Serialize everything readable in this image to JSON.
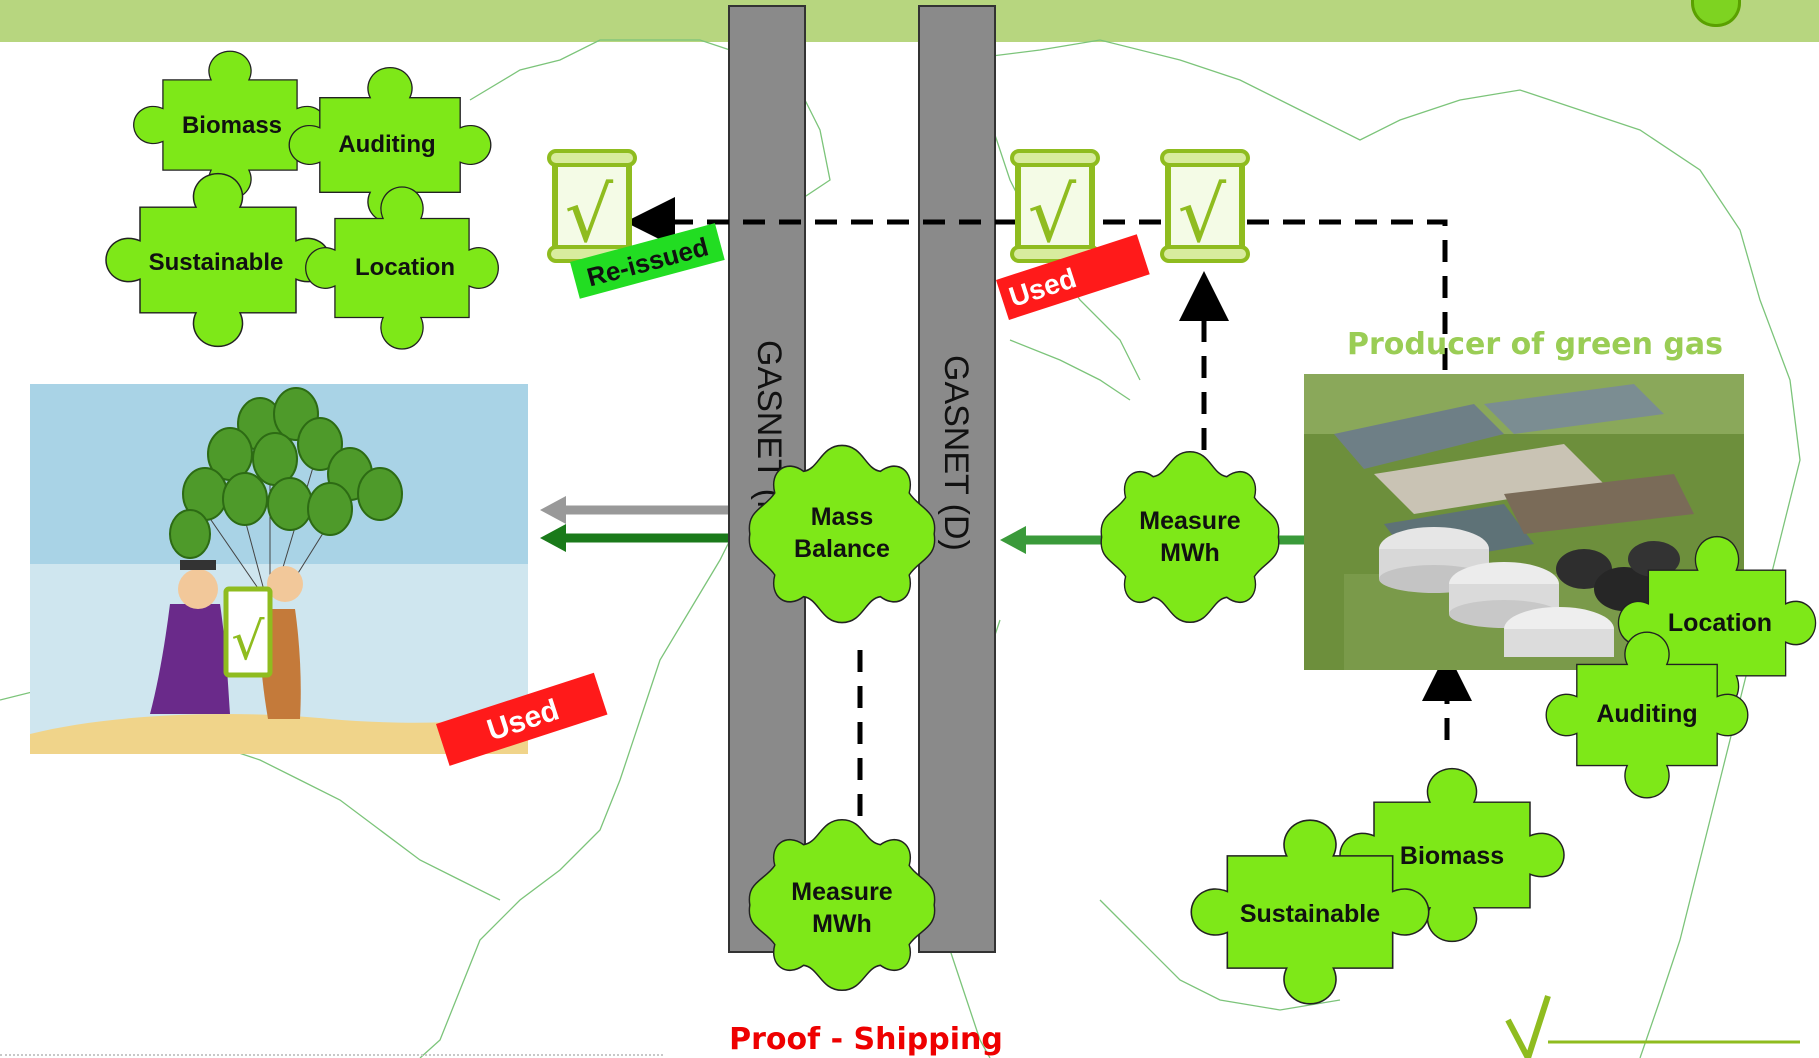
{
  "pipes": {
    "nl_label": "GASNET (NL)",
    "d_label": "GASNET (D)"
  },
  "producer": {
    "title": "Producer of green gas"
  },
  "proof_shipping": "Proof - Shipping",
  "stamps": {
    "reissued": "Re-issued",
    "used_top": "Used",
    "used_bottom": "Used"
  },
  "certificate": {
    "glyph": "√",
    "icon": "certificate-scroll-icon"
  },
  "left_puzzle": {
    "biomass": "Biomass",
    "auditing": "Auditing",
    "sustainable": "Sustainable",
    "location": "Location"
  },
  "right_puzzle": {
    "location": "Location",
    "auditing": "Auditing",
    "biomass": "Biomass",
    "sustainable": "Sustainable"
  },
  "pipe_gears": {
    "mass_balance_line1": "Mass",
    "mass_balance_line2": "Balance",
    "measure_bottom_line1": "Measure",
    "measure_bottom_line2": "MWh"
  },
  "producer_gear": {
    "line1": "Measure",
    "line2": "MWh"
  },
  "colors": {
    "puzzle_green": "#7ee818",
    "pipe_gray": "#8a8a8a",
    "header_green": "#b7d67f",
    "stamp_red": "#ff1a1a",
    "stamp_green": "#22dd22",
    "producer_text": "#9acd55",
    "proof_text": "#ee0000"
  }
}
